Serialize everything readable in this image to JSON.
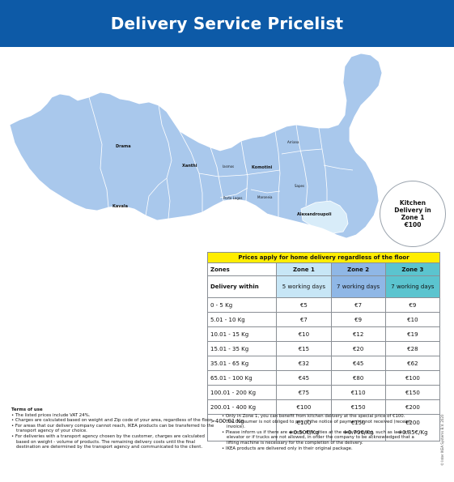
{
  "title": "Delivery Service Pricelist",
  "map": {
    "regions": [
      "Drama",
      "Xanthi",
      "Kavala",
      "Iasmos",
      "Komotini",
      "Arriana",
      "Sapes",
      "Porto Lagos",
      "Maroneia",
      "Alexandroupoli"
    ],
    "colors": {
      "land": "#a9c8ec",
      "zone1": "#d8ecf9",
      "border": "#ffffff",
      "header": "#0d5aa7"
    }
  },
  "kitchen_note": "Kitchen Delivery in Zone 1 €100",
  "pricelist": {
    "banner": "Prices apply for home delivery regardless of the floor",
    "zones_label": "Zones",
    "zones": [
      "Zone 1",
      "Zone 2",
      "Zone 3"
    ],
    "within_label": "Delivery within",
    "within": [
      "5 working days",
      "7 working days",
      "7 working days"
    ],
    "rows": [
      {
        "weight": "0 - 5 Kg",
        "prices": [
          "€5",
          "€7",
          "€9"
        ]
      },
      {
        "weight": "5.01 - 10 Kg",
        "prices": [
          "€7",
          "€9",
          "€10"
        ]
      },
      {
        "weight": "10.01 - 15 Kg",
        "prices": [
          "€10",
          "€12",
          "€19"
        ]
      },
      {
        "weight": "15.01 - 35 Kg",
        "prices": [
          "€15",
          "€20",
          "€28"
        ]
      },
      {
        "weight": "35.01 - 65 Kg",
        "prices": [
          "€32",
          "€45",
          "€62"
        ]
      },
      {
        "weight": "65.01 - 100 Kg",
        "prices": [
          "€45",
          "€80",
          "€100"
        ]
      },
      {
        "weight": "100.01 - 200 Kg",
        "prices": [
          "€75",
          "€110",
          "€150"
        ]
      },
      {
        "weight": "200.01 - 400 Kg",
        "prices": [
          "€100",
          "€150",
          "€200"
        ]
      }
    ],
    "last_row": {
      "weight": ">400.01 Kg",
      "prices": [
        "€100",
        "€150",
        "€200"
      ],
      "extra": [
        "+0.50€/Kg",
        "+0.70€/Kg",
        "+0.85€/Kg"
      ]
    }
  },
  "terms": {
    "title": "Terms of use",
    "left": [
      "• The listed prices include VAT 24%.",
      "• Charges are calculated based on weight and Zip code of your area, regardless of the floor.",
      "• For areas that our delivery company cannot reach, IKEA products can be transferred to the transport agency of your choice.",
      "• For deliveries with a transport agency chosen by the customer, charges are calculated based on weight - volume of products. The remaining delivery costs until the final destination are determined by the transport agency and communicated to the client."
    ],
    "right": [
      "• Only in Zone 1, you can benefit from kitchen delivery at the special price of €100.",
      "• The Consumer is not obliged to pay, if the notice of payment is not received (receipt-invoice).",
      "• Please inform us if there are access difficulties at the delivery point, such as lack of elevator or if trucks are not allowed, in order the company to be acknowledged that a lifting machine is necessary for the completion of the delivery.",
      "• IKEA products are delivered only in their original package."
    ]
  },
  "copyright": "© Inter IKEA Systems B.V. 2020"
}
